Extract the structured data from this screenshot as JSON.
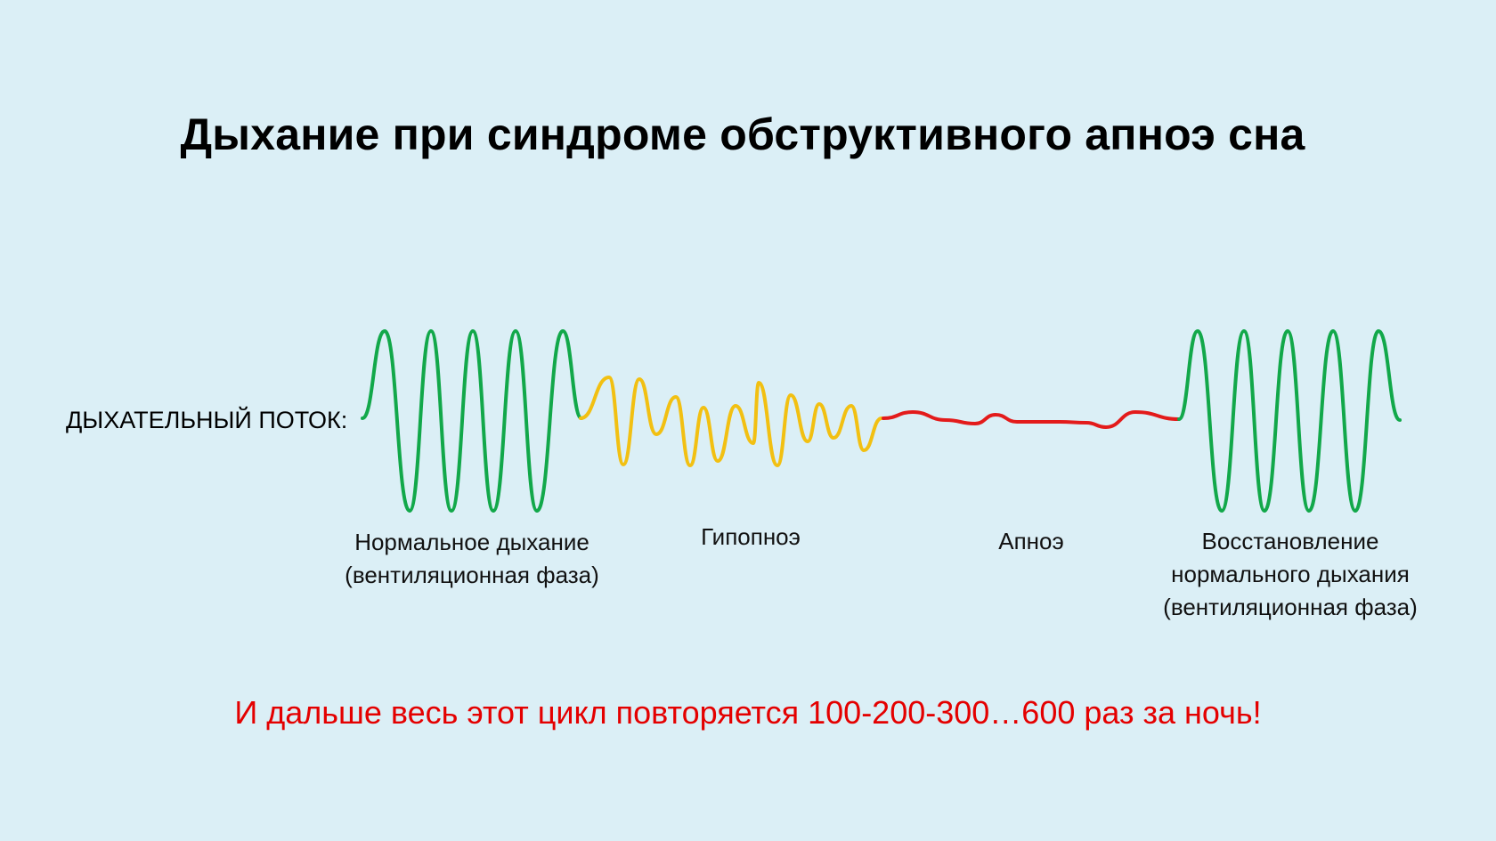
{
  "title": "Дыхание при синдроме обструктивного апноэ сна",
  "flow_label": "ДЫХАТЕЛЬНЫЙ ПОТОК:",
  "phases": [
    {
      "lines": [
        "Нормальное дыхание",
        "(вентиляционная фаза)"
      ],
      "color": "#12a84a"
    },
    {
      "lines": [
        "Гипопноэ"
      ],
      "color": "#f2c012"
    },
    {
      "lines": [
        "Апноэ"
      ],
      "color": "#e31b1b"
    },
    {
      "lines": [
        "Восстановление",
        "нормального дыхания",
        "(вентиляционная фаза)"
      ],
      "color": "#12a84a"
    }
  ],
  "footer": "И дальше весь этот цикл повторяется 100-200-300…600 раз за ночь!"
}
